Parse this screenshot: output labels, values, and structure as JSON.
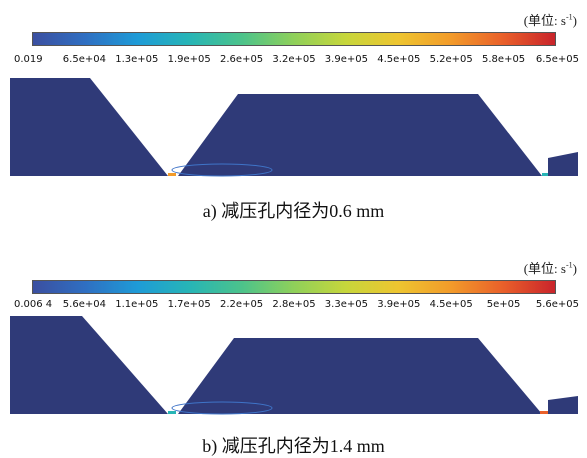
{
  "panel_a": {
    "unit_label": "(单位: s",
    "unit_sup": "-1",
    "unit_close": ")",
    "ticks": [
      "0.019",
      "6.5e+04",
      "1.3e+05",
      "1.9e+05",
      "2.6e+05",
      "3.2e+05",
      "3.9e+05",
      "4.5e+05",
      "5.2e+05",
      "5.8e+05",
      "6.5e+05"
    ],
    "caption": "a)  减压孔内径为0.6 mm"
  },
  "panel_b": {
    "unit_label": "(单位: s",
    "unit_sup": "-1",
    "unit_close": ")",
    "ticks": [
      "0.006 4",
      "5.6e+04",
      "1.1e+05",
      "1.7e+05",
      "2.2e+05",
      "2.8e+05",
      "3.3e+05",
      "3.9e+05",
      "4.5e+05",
      "5e+05",
      "5.6e+05"
    ],
    "caption": "b)  减压孔内径为1.4 mm"
  },
  "colors": {
    "fluid": "#2f3a78",
    "hot": "#c9242b"
  }
}
